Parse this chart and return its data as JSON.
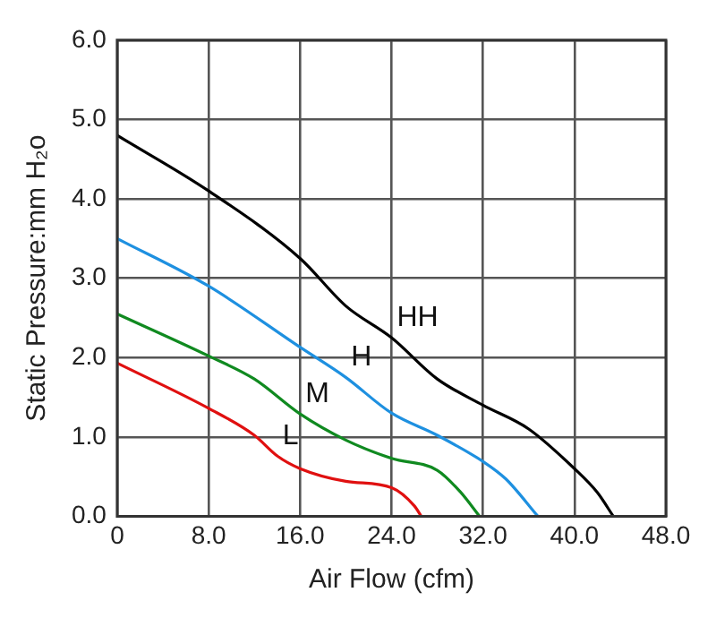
{
  "chart_data": {
    "type": "line",
    "xlabel": "Air Flow (cfm)",
    "ylabel": "Static Pressure:mm H₂o",
    "xlim": [
      0,
      48
    ],
    "ylim": [
      0,
      6
    ],
    "xticks": [
      0,
      {
        "value": 8,
        "label": "8.0"
      },
      {
        "value": 16,
        "label": "16.0"
      },
      {
        "value": 24,
        "label": "24.0"
      },
      {
        "value": 32,
        "label": "32.0"
      },
      {
        "value": 40,
        "label": "40.0"
      },
      {
        "value": 48,
        "label": "48.0"
      }
    ],
    "yticks": [
      {
        "value": 0,
        "label": "0.0"
      },
      {
        "value": 1,
        "label": "1.0"
      },
      {
        "value": 2,
        "label": "2.0"
      },
      {
        "value": 3,
        "label": "3.0"
      },
      {
        "value": 4,
        "label": "4.0"
      },
      {
        "value": 5,
        "label": "5.0"
      },
      {
        "value": 6,
        "label": "6.0"
      }
    ],
    "grid": true,
    "legend": false,
    "marker": "none",
    "line_style": "solid",
    "series": [
      {
        "name": "HH",
        "color": "#000000",
        "x": [
          0,
          8,
          16,
          20,
          24,
          28,
          32,
          36,
          40,
          42,
          43.4
        ],
        "values": [
          4.8,
          4.1,
          3.25,
          2.65,
          2.25,
          1.73,
          1.4,
          1.1,
          0.6,
          0.3,
          0
        ]
      },
      {
        "name": "H",
        "color": "#1e90e0",
        "x": [
          0,
          8,
          16,
          20,
          24,
          28,
          32,
          34,
          36.8
        ],
        "values": [
          3.5,
          2.9,
          2.13,
          1.75,
          1.3,
          1.02,
          0.69,
          0.47,
          0
        ]
      },
      {
        "name": "M",
        "color": "#108a20",
        "x": [
          0,
          8,
          12,
          16,
          20,
          24,
          28,
          30,
          31.7
        ],
        "values": [
          2.55,
          2.02,
          1.73,
          1.29,
          0.96,
          0.73,
          0.58,
          0.31,
          0
        ]
      },
      {
        "name": "L",
        "color": "#e01010",
        "x": [
          0,
          8,
          12,
          14,
          16,
          20,
          24,
          26,
          26.6
        ],
        "values": [
          1.93,
          1.36,
          1.02,
          0.76,
          0.6,
          0.44,
          0.36,
          0.13,
          0
        ]
      }
    ]
  }
}
